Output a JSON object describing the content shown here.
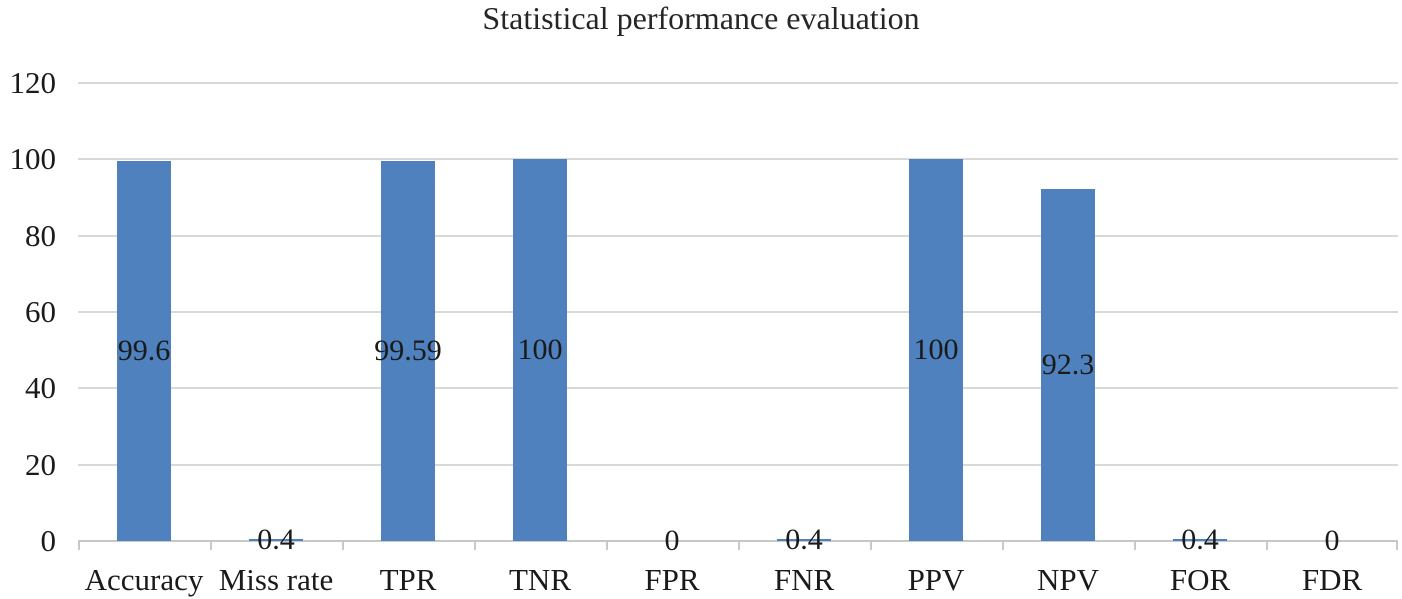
{
  "chart_data": {
    "type": "bar",
    "title": "Statistical performance evaluation",
    "categories": [
      "Accuracy",
      "Miss rate",
      "TPR",
      "TNR",
      "FPR",
      "FNR",
      "PPV",
      "NPV",
      "FOR",
      "FDR"
    ],
    "values": [
      99.6,
      0.4,
      99.59,
      100,
      0,
      0.4,
      100,
      92.3,
      0.4,
      0
    ],
    "data_labels": [
      "99.6",
      "0.4",
      "99.59",
      "100",
      "0",
      "0.4",
      "100",
      "92.3",
      "0.4",
      "0"
    ],
    "data_label_position": "center-of-bar",
    "xlabel": "",
    "ylabel": "",
    "y_ticks": [
      0,
      20,
      40,
      60,
      80,
      100,
      120
    ],
    "ylim": [
      0,
      120
    ],
    "grid": true,
    "legend": false,
    "colors": {
      "bar": "#4E81BD",
      "gridline": "#D9D9D9",
      "axis": "#C8C8C8",
      "text": "#1a1a1a",
      "title": "#262626",
      "background": "#ffffff"
    }
  }
}
